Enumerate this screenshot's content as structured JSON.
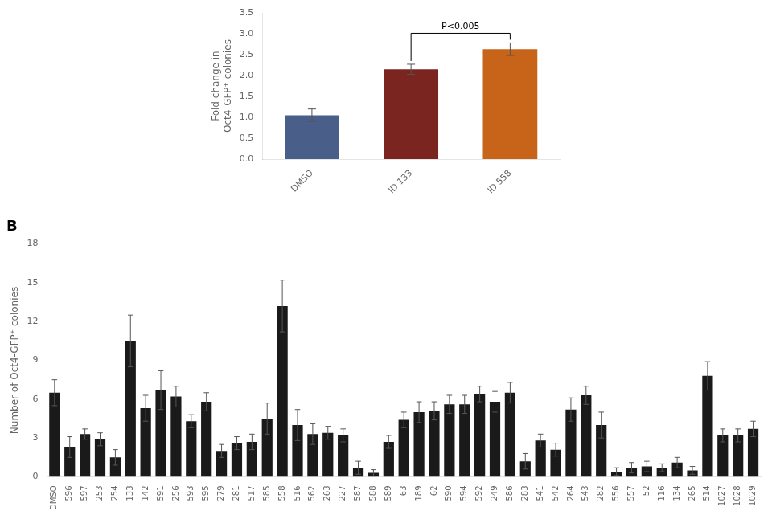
{
  "chart_data": [
    {
      "type": "bar",
      "title": "B",
      "categories": [
        "DMSO",
        "596",
        "597",
        "253",
        "254",
        "133",
        "142",
        "591",
        "256",
        "593",
        "595",
        "279",
        "281",
        "517",
        "585",
        "558",
        "516",
        "562",
        "263",
        "227",
        "587",
        "588",
        "589",
        "63",
        "189",
        "62",
        "590",
        "594",
        "592",
        "249",
        "586",
        "283",
        "541",
        "542",
        "264",
        "543",
        "282",
        "556",
        "557",
        "52",
        "116",
        "134",
        "265",
        "514",
        "1027",
        "1028",
        "1029"
      ],
      "values": [
        6.5,
        2.3,
        3.3,
        2.9,
        1.5,
        10.5,
        5.3,
        6.7,
        6.2,
        4.3,
        5.8,
        2.0,
        2.6,
        2.7,
        4.5,
        13.2,
        4.0,
        3.3,
        3.4,
        3.2,
        0.7,
        0.3,
        2.7,
        4.4,
        5.0,
        5.1,
        5.6,
        5.6,
        6.4,
        5.8,
        6.5,
        1.2,
        2.8,
        2.1,
        5.2,
        6.3,
        4.0,
        0.4,
        0.7,
        0.8,
        0.7,
        1.1,
        0.5,
        7.8,
        3.2,
        3.2,
        3.7
      ],
      "errors": [
        1.0,
        0.8,
        0.4,
        0.5,
        0.6,
        2.0,
        1.0,
        1.5,
        0.8,
        0.5,
        0.7,
        0.5,
        0.5,
        0.6,
        1.2,
        2.0,
        1.2,
        0.8,
        0.5,
        0.5,
        0.5,
        0.25,
        0.5,
        0.6,
        0.8,
        0.7,
        0.7,
        0.7,
        0.6,
        0.8,
        0.8,
        0.6,
        0.5,
        0.5,
        0.9,
        0.7,
        1.0,
        0.3,
        0.4,
        0.4,
        0.3,
        0.4,
        0.3,
        1.1,
        0.5,
        0.5,
        0.6
      ],
      "color": "#1a1a1a",
      "y_label": "Number of Oct4-GFP⁺ colonies",
      "ylim": [
        0,
        18
      ],
      "yticks": [
        0,
        3,
        6,
        9,
        12,
        15,
        18
      ],
      "grid": false
    },
    {
      "type": "bar",
      "categories": [
        "DMSO",
        "ID 133",
        "ID 558"
      ],
      "values": [
        1.05,
        2.15,
        2.63
      ],
      "errors": [
        0.15,
        0.12,
        0.15
      ],
      "colors": [
        "#4a5e8a",
        "#7a2520",
        "#c8641a"
      ],
      "y_label": "Fold change in\nOct4-GFP⁺ colonies",
      "ylim": [
        0.0,
        3.5
      ],
      "yticks": [
        {
          "value": 0,
          "label": "0.0"
        },
        0.5,
        {
          "value": 1,
          "label": "1.0"
        },
        1.5,
        {
          "value": 2,
          "label": "2.0"
        },
        2.5,
        {
          "value": 3,
          "label": "3.0"
        },
        3.5
      ],
      "annotations": [
        {
          "text": "P<0.005",
          "between": [
            "ID 133",
            "ID 558"
          ]
        }
      ],
      "grid": false
    }
  ]
}
